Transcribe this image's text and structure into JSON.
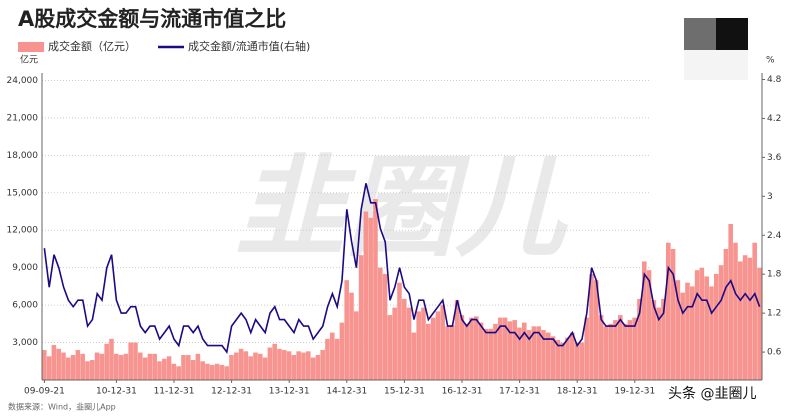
{
  "chart_data": {
    "type": "bar_line",
    "title": "A股成交金额与流通市值之比",
    "ylabel": "亿元",
    "y2label": "%",
    "source": "数据来源：Wind，韭圈儿App",
    "watermark": "韭圈儿",
    "credit": "头条 @韭圈儿",
    "categories": [
      "09-09-21",
      null,
      null,
      null,
      null,
      null,
      null,
      null,
      null,
      null,
      null,
      null,
      null,
      null,
      null,
      "10-12-31",
      null,
      null,
      null,
      null,
      null,
      null,
      null,
      null,
      null,
      null,
      null,
      "11-12-31",
      null,
      null,
      null,
      null,
      null,
      null,
      null,
      null,
      null,
      null,
      null,
      "12-12-31",
      null,
      null,
      null,
      null,
      null,
      null,
      null,
      null,
      null,
      null,
      null,
      "13-12-31",
      null,
      null,
      null,
      null,
      null,
      null,
      null,
      null,
      null,
      null,
      null,
      "14-12-31",
      null,
      null,
      null,
      null,
      null,
      null,
      null,
      null,
      null,
      null,
      null,
      "15-12-31",
      null,
      null,
      null,
      null,
      null,
      null,
      null,
      null,
      null,
      null,
      null,
      "16-12-31",
      null,
      null,
      null,
      null,
      null,
      null,
      null,
      null,
      null,
      null,
      null,
      "17-12-31",
      null,
      null,
      null,
      null,
      null,
      null,
      null,
      null,
      null,
      null,
      null,
      "18-12-31",
      null,
      null,
      null,
      null,
      null,
      null,
      null,
      null,
      null,
      null,
      null,
      "19-12-31",
      null,
      null,
      null,
      null,
      null,
      null,
      null,
      null,
      null,
      null,
      null,
      null,
      null,
      null,
      null,
      null,
      null,
      null,
      null,
      null,
      null,
      null,
      null,
      null,
      null,
      null
    ],
    "series": [
      {
        "name": "成交金额（亿元）",
        "type": "bar",
        "color": "#f7948f",
        "axis": "y",
        "values": [
          2400,
          1900,
          2800,
          2500,
          2200,
          1800,
          2000,
          2400,
          2100,
          1500,
          1600,
          2200,
          2100,
          2900,
          3300,
          2100,
          2000,
          2100,
          3000,
          3000,
          2200,
          1800,
          2100,
          2100,
          1500,
          1700,
          1900,
          1300,
          1100,
          2000,
          2000,
          1600,
          2100,
          1500,
          1300,
          1200,
          1300,
          1200,
          1100,
          2000,
          2200,
          2500,
          2300,
          1900,
          2200,
          2100,
          1800,
          2600,
          2900,
          2500,
          2400,
          2300,
          2000,
          2300,
          2200,
          2300,
          1800,
          2000,
          2400,
          3300,
          3800,
          3300,
          4600,
          8000,
          7000,
          5500,
          10000,
          13500,
          13000,
          14500,
          9000,
          8500,
          5200,
          5800,
          7800,
          6500,
          5800,
          3800,
          5500,
          5800,
          4500,
          5000,
          5500,
          6000,
          4300,
          4400,
          6400,
          5200,
          4500,
          5000,
          5100,
          4600,
          4100,
          4100,
          4500,
          5000,
          5000,
          4700,
          4800,
          4200,
          4600,
          4000,
          4300,
          4300,
          4000,
          3800,
          3500,
          3200,
          3000,
          3400,
          3800,
          3000,
          3000,
          5000,
          8500,
          8000,
          5200,
          4300,
          4500,
          4800,
          5200,
          4500,
          4800,
          5000,
          6500,
          9500,
          8800,
          6400,
          5800,
          6500,
          11000,
          10500,
          8000,
          7000,
          7800,
          7500,
          8800,
          9000,
          8300,
          7500,
          8500,
          9200,
          10500,
          12500,
          11000,
          9500,
          10000,
          9800,
          11000,
          9000
        ]
      },
      {
        "name": "成交金额/流通市值(右轴)",
        "type": "line",
        "color": "#1c0a84",
        "axis": "y2",
        "values": [
          2.2,
          1.6,
          2.1,
          1.9,
          1.6,
          1.4,
          1.3,
          1.4,
          1.4,
          1.0,
          1.1,
          1.5,
          1.4,
          1.9,
          2.1,
          1.4,
          1.2,
          1.2,
          1.3,
          1.3,
          1.0,
          0.9,
          1.0,
          1.0,
          0.8,
          0.9,
          1.0,
          0.8,
          0.7,
          1.0,
          1.0,
          0.9,
          1.0,
          0.8,
          0.7,
          0.7,
          0.7,
          0.7,
          0.6,
          1.0,
          1.1,
          1.2,
          1.1,
          0.9,
          1.1,
          1.0,
          0.9,
          1.2,
          1.3,
          1.1,
          1.1,
          1.0,
          0.9,
          1.1,
          1.0,
          1.0,
          0.8,
          0.9,
          1.0,
          1.3,
          1.5,
          1.3,
          1.7,
          2.8,
          2.3,
          1.9,
          2.8,
          3.2,
          2.9,
          2.9,
          2.5,
          2.3,
          1.4,
          1.6,
          1.9,
          1.6,
          1.5,
          1.1,
          1.4,
          1.4,
          1.1,
          1.2,
          1.3,
          1.4,
          1.0,
          1.0,
          1.4,
          1.1,
          1.0,
          1.1,
          1.1,
          1.0,
          0.9,
          0.9,
          0.9,
          1.0,
          1.0,
          0.9,
          0.9,
          0.8,
          0.9,
          0.8,
          0.9,
          0.9,
          0.8,
          0.8,
          0.8,
          0.7,
          0.7,
          0.8,
          0.9,
          0.7,
          0.8,
          1.2,
          1.9,
          1.7,
          1.1,
          1.0,
          1.0,
          1.0,
          1.1,
          1.0,
          1.0,
          1.0,
          1.2,
          1.8,
          1.7,
          1.3,
          1.1,
          1.2,
          1.9,
          1.8,
          1.4,
          1.2,
          1.3,
          1.3,
          1.5,
          1.4,
          1.4,
          1.2,
          1.3,
          1.4,
          1.6,
          1.7,
          1.5,
          1.4,
          1.5,
          1.4,
          1.5,
          1.3
        ]
      }
    ],
    "ylim": [
      0,
      24600
    ],
    "yticks": [
      {
        "value": 3000,
        "label": "3,000"
      },
      {
        "value": 6000,
        "label": "6,000"
      },
      {
        "value": 9000,
        "label": "9,000"
      },
      {
        "value": 12000,
        "label": "12,000"
      },
      {
        "value": 15000,
        "label": "15,000"
      },
      {
        "value": 18000,
        "label": "18,000"
      },
      {
        "value": 21000,
        "label": "21,000"
      },
      {
        "value": 24000,
        "label": "24,000"
      }
    ],
    "y2lim": [
      0.17,
      4.9
    ],
    "y2ticks": [
      0.6,
      1.2,
      1.8,
      2.4,
      3,
      3.6,
      4.2,
      4.8
    ],
    "grid": true
  }
}
